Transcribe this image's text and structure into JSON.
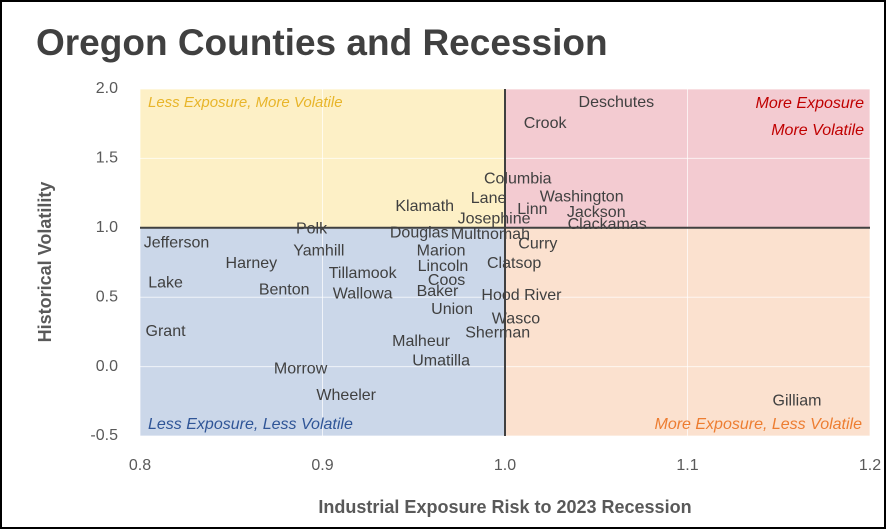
{
  "chart_data": {
    "type": "scatter",
    "title": "Oregon Counties and Recession",
    "x_label": "Industrial Exposure Risk to 2023 Recession",
    "y_label": "Historical Volatility",
    "labels": [
      "Deschutes",
      "Crook",
      "Columbia",
      "Lane",
      "Washington",
      "Klamath",
      "Linn",
      "Jackson",
      "Josephine",
      "Clackamas",
      "Polk",
      "Douglas",
      "Multnomah",
      "Curry",
      "Jefferson",
      "Yamhill",
      "Marion",
      "Harney",
      "Lincoln",
      "Clatsop",
      "Tillamook",
      "Coos",
      "Lake",
      "Benton",
      "Wallowa",
      "Baker",
      "Hood River",
      "Union",
      "Wasco",
      "Sherman",
      "Grant",
      "Malheur",
      "Umatilla",
      "Morrow",
      "Wheeler",
      "Gilliam"
    ],
    "x": [
      1.061,
      1.022,
      1.007,
      0.991,
      1.042,
      0.956,
      1.015,
      1.05,
      0.994,
      1.056,
      0.894,
      0.953,
      0.992,
      1.018,
      0.82,
      0.898,
      0.965,
      0.861,
      0.966,
      1.005,
      0.922,
      0.968,
      0.814,
      0.879,
      0.922,
      0.963,
      1.009,
      0.971,
      1.006,
      0.996,
      0.814,
      0.954,
      0.965,
      0.888,
      0.913,
      1.16
    ],
    "values": [
      1.9,
      1.75,
      1.35,
      1.21,
      1.22,
      1.15,
      1.13,
      1.11,
      1.06,
      1.02,
      0.99,
      0.96,
      0.95,
      0.88,
      0.89,
      0.83,
      0.83,
      0.74,
      0.72,
      0.74,
      0.67,
      0.62,
      0.6,
      0.55,
      0.52,
      0.54,
      0.51,
      0.41,
      0.34,
      0.24,
      0.25,
      0.18,
      0.04,
      -0.02,
      -0.21,
      -0.25
    ],
    "xlim": [
      0.8,
      1.2
    ],
    "ylim": [
      -0.5,
      2.0
    ],
    "xticks": [
      0.8,
      0.9,
      {
        "value": 1,
        "label": "1.0"
      },
      1.1,
      1.2
    ],
    "yticks": [
      -0.5,
      {
        "value": 0,
        "label": "0.0"
      },
      0.5,
      {
        "value": 1,
        "label": "1.0"
      },
      1.5,
      {
        "value": 2,
        "label": "2.0"
      }
    ],
    "grid": true,
    "quadrants": {
      "x": 1,
      "y": 1,
      "top_left": {
        "label": "Less Exposure, More Volatile",
        "color": "#fdf0c6",
        "text_color": "#e8b52a"
      },
      "top_right": {
        "label": [
          "More Exposure",
          "More Volatile"
        ],
        "color": "#f3cbd1",
        "text_color": "#c00000"
      },
      "bottom_left": {
        "label": "Less Exposure, Less Volatile",
        "color": "#cbd7e9",
        "text_color": "#2f5597"
      },
      "bottom_right": {
        "label": "More Exposure, Less Volatile",
        "color": "#fbe1cf",
        "text_color": "#ed7d31"
      }
    }
  }
}
